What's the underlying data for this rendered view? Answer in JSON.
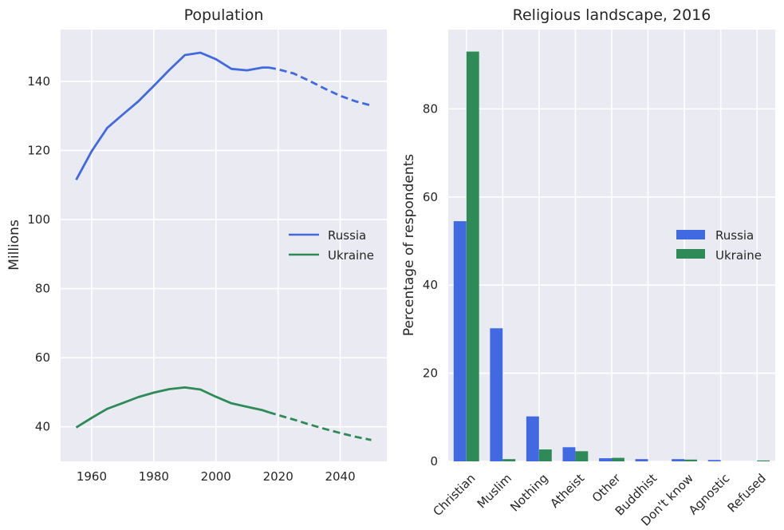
{
  "colors": {
    "russia": "#4169E1",
    "ukraine": "#2E8B57",
    "plot_bg": "#EAEAF2",
    "grid": "#FFFFFF"
  },
  "chart_data": [
    {
      "type": "line",
      "title": "Population",
      "xlabel": "",
      "ylabel": "Millions",
      "xlim": [
        1950,
        2055
      ],
      "ylim": [
        30,
        155
      ],
      "xticks": [
        1960,
        1980,
        2000,
        2020,
        2040
      ],
      "yticks": [
        40,
        60,
        80,
        100,
        120,
        140
      ],
      "grid": true,
      "legend_position": "right",
      "series": [
        {
          "name": "Russia",
          "color": "#4169E1",
          "x": [
            1955,
            1960,
            1965,
            1970,
            1975,
            1980,
            1985,
            1990,
            1995,
            2000,
            2005,
            2010,
            2015,
            2017,
            2020,
            2025,
            2030,
            2035,
            2040,
            2045,
            2050
          ],
          "y": [
            111.5,
            119.8,
            126.5,
            130.4,
            134.2,
            138.7,
            143.3,
            147.6,
            148.3,
            146.4,
            143.6,
            143.2,
            144.0,
            144.0,
            143.5,
            142.3,
            140.2,
            137.9,
            135.8,
            134.2,
            133.0
          ],
          "projection_from_x": 2017
        },
        {
          "name": "Ukraine",
          "color": "#2E8B57",
          "x": [
            1955,
            1960,
            1965,
            1970,
            1975,
            1980,
            1985,
            1990,
            1995,
            2000,
            2005,
            2010,
            2015,
            2017,
            2020,
            2025,
            2030,
            2035,
            2040,
            2045,
            2050
          ],
          "y": [
            39.8,
            42.6,
            45.2,
            46.9,
            48.6,
            49.9,
            50.9,
            51.4,
            50.8,
            48.7,
            46.8,
            45.8,
            44.8,
            44.2,
            43.4,
            42.1,
            40.7,
            39.4,
            38.2,
            37.1,
            36.2
          ],
          "projection_from_x": 2017
        }
      ]
    },
    {
      "type": "bar",
      "title": "Religious landscape, 2016",
      "xlabel": "",
      "ylabel": "Percentage of respondents",
      "ylim": [
        0,
        98
      ],
      "yticks": [
        0,
        20,
        40,
        60,
        80
      ],
      "grid": true,
      "legend_position": "right",
      "categories": [
        "Christian",
        "Muslim",
        "Nothing",
        "Atheist",
        "Other",
        "Buddhist",
        "Don't know",
        "Agnostic",
        "Refused"
      ],
      "series": [
        {
          "name": "Russia",
          "color": "#4169E1",
          "values": [
            54.5,
            30.2,
            10.2,
            3.2,
            0.7,
            0.5,
            0.5,
            0.3,
            0.0
          ]
        },
        {
          "name": "Ukraine",
          "color": "#2E8B57",
          "values": [
            93.0,
            0.5,
            2.7,
            2.3,
            0.8,
            0.0,
            0.4,
            0.0,
            0.2
          ]
        }
      ]
    }
  ]
}
